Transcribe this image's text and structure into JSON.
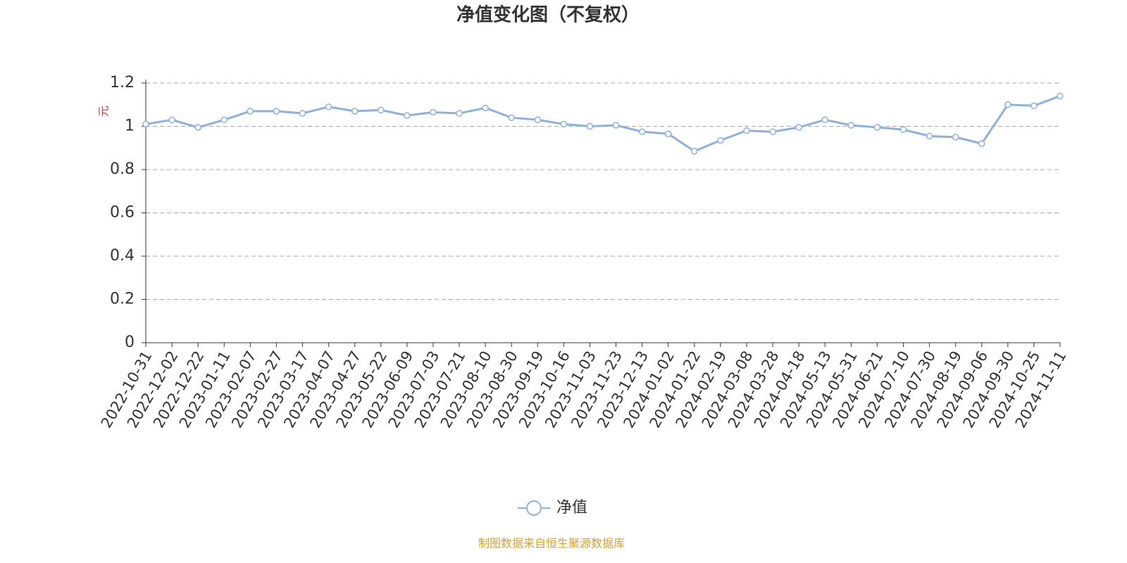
{
  "chart_data": {
    "type": "line",
    "title": "净值变化图（不复权）",
    "y_label": "元",
    "categories": [
      "2022-10-31",
      "2022-12-02",
      "2022-12-22",
      "2023-01-11",
      "2023-02-07",
      "2023-02-27",
      "2023-03-17",
      "2023-04-07",
      "2023-04-27",
      "2023-05-22",
      "2023-06-09",
      "2023-07-03",
      "2023-07-21",
      "2023-08-10",
      "2023-08-30",
      "2023-09-19",
      "2023-10-16",
      "2023-11-03",
      "2023-11-23",
      "2023-12-13",
      "2024-01-02",
      "2024-01-22",
      "2024-02-19",
      "2024-03-08",
      "2024-03-28",
      "2024-04-18",
      "2024-05-13",
      "2024-05-31",
      "2024-06-21",
      "2024-07-10",
      "2024-07-30",
      "2024-08-19",
      "2024-09-06",
      "2024-09-30",
      "2024-10-25",
      "2024-11-11"
    ],
    "series": [
      {
        "name": "净值",
        "color": "#8eb0dd",
        "values": [
          1.01,
          1.03,
          0.995,
          1.03,
          1.07,
          1.07,
          1.06,
          1.09,
          1.07,
          1.075,
          1.05,
          1.065,
          1.06,
          1.085,
          1.04,
          1.03,
          1.01,
          1.0,
          1.005,
          0.975,
          0.965,
          0.885,
          0.935,
          0.98,
          0.975,
          0.995,
          1.03,
          1.005,
          0.995,
          0.985,
          0.955,
          0.95,
          0.92,
          1.1,
          1.095,
          1.14
        ]
      }
    ],
    "ylim": [
      0,
      1.2
    ],
    "yticks": [
      0,
      0.2,
      0.4,
      0.6,
      0.8,
      1,
      1.2
    ],
    "grid": true,
    "source": "制图数据来自恒生聚源数据库"
  }
}
